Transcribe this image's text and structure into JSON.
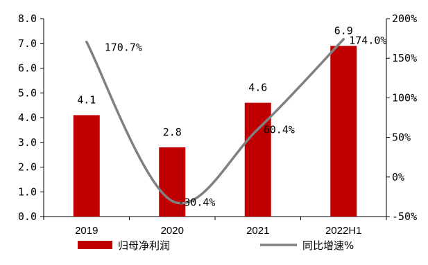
{
  "chart_data": {
    "type": "bar",
    "categories": [
      "2019",
      "2020",
      "2021",
      "2022H1"
    ],
    "series": [
      {
        "name": "归母净利润",
        "type": "bar",
        "axis": "left",
        "color": "#C00000",
        "values": [
          4.1,
          2.8,
          4.6,
          6.9
        ],
        "labels": [
          "4.1",
          "2.8",
          "4.6",
          "6.9"
        ]
      },
      {
        "name": "同比增速%",
        "type": "line",
        "axis": "right",
        "color": "#808080",
        "values": [
          170.7,
          -30.4,
          60.4,
          174.0
        ],
        "labels": [
          "170.7%",
          "-30.4%",
          "60.4%",
          "174.0%"
        ]
      }
    ],
    "y_left": {
      "range": [
        0,
        8
      ],
      "ticks": [
        "0.0",
        "1.0",
        "2.0",
        "3.0",
        "4.0",
        "5.0",
        "6.0",
        "7.0",
        "8.0"
      ]
    },
    "y_right": {
      "range": [
        -50,
        200
      ],
      "ticks": [
        "-50%",
        "0%",
        "50%",
        "100%",
        "150%",
        "200%"
      ]
    },
    "legend": "bottom",
    "grid": false
  }
}
